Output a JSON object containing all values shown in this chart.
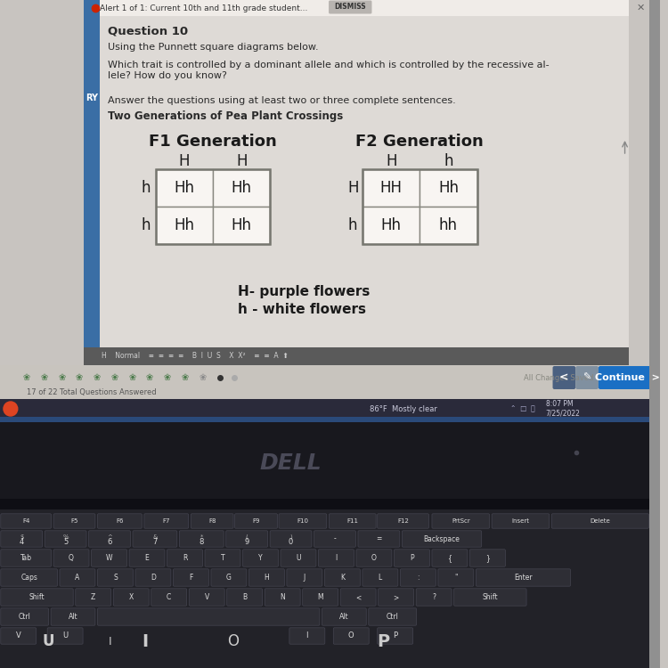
{
  "bg_top_color": "#c8c4c0",
  "page_bg": "#dedad6",
  "alert_bar_bg": "#f0ece8",
  "alert_text": "Alert 1 of 1: Current 10th and 11th grade student...",
  "dismiss_text": "DISMISS",
  "question_title": "Question 10",
  "instruction1": "Using the Punnett square diagrams below.",
  "instruction2": "Which trait is controlled by a dominant allele and which is controlled by the recessive al-\nlele? How do you know?",
  "instruction3": "Answer the questions using at least two or three complete sentences.",
  "bold_label": "Two Generations of Pea Plant Crossings",
  "f1_title": "F1 Generation",
  "f2_title": "F2 Generation",
  "f1_col_headers": [
    "H",
    "H"
  ],
  "f1_row_headers": [
    "h",
    "h"
  ],
  "f1_cells": [
    [
      "Hh",
      "Hh"
    ],
    [
      "Hh",
      "Hh"
    ]
  ],
  "f2_col_headers": [
    "H",
    "h"
  ],
  "f2_row_headers": [
    "H",
    "h"
  ],
  "f2_cells": [
    [
      "HH",
      "Hh"
    ],
    [
      "Hh",
      "hh"
    ]
  ],
  "legend1": "H- purple flowers",
  "legend2": "h - white flowers",
  "continue_btn_color": "#1a6fc4",
  "text_color": "#2a2a2a",
  "cell_bg": "#f8f5f2",
  "left_strip_color": "#3a6ea5",
  "toolbar_bg": "#5a5a5a",
  "nav_bar_bg": "#c8c4be",
  "taskbar_bg": "#2a2a3a",
  "laptop_body_color": "#1a1a22",
  "keyboard_bg": "#222228",
  "key_color": "#2e2e35",
  "key_edge": "#444450",
  "dell_color": "#4a4a58"
}
